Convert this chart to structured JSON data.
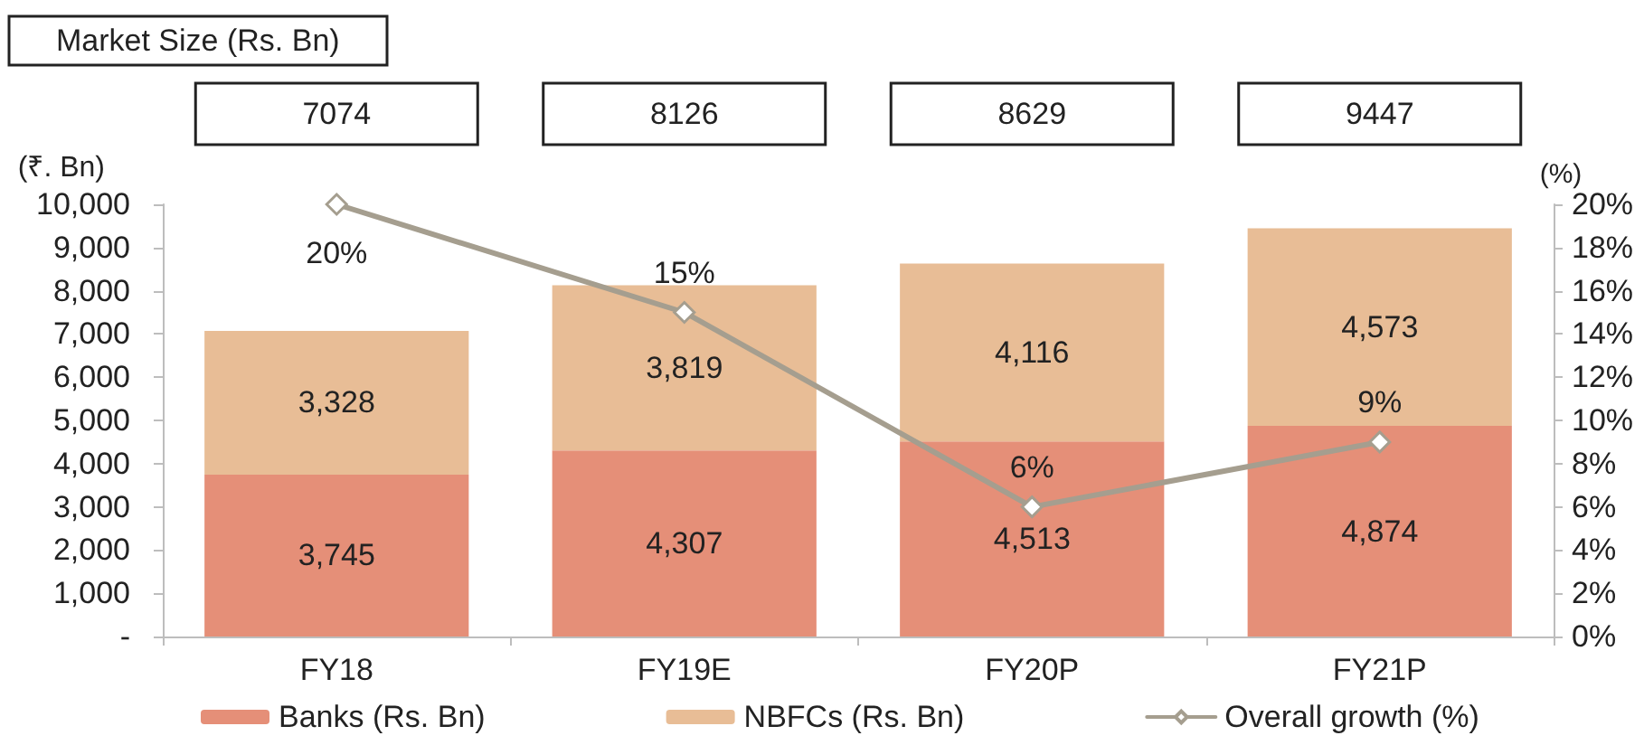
{
  "chart_data": {
    "type": "bar",
    "title": "Market Size (Rs. Bn)",
    "ylabel": "(₹. Bn)",
    "y2label": "(%)",
    "categories": [
      "FY18",
      "FY19E",
      "FY20P",
      "FY21P"
    ],
    "stacked": true,
    "series": [
      {
        "name": "Banks (Rs. Bn)",
        "color": "#e58f78",
        "values": [
          3745,
          4307,
          4513,
          4874
        ],
        "value_labels": [
          "3,745",
          "4,307",
          "4,513",
          "4,874"
        ]
      },
      {
        "name": "NBFCs (Rs. Bn)",
        "color": "#e8bd96",
        "values": [
          3328,
          3819,
          4116,
          4573
        ],
        "value_labels": [
          "3,328",
          "3,819",
          "4,116",
          "4,573"
        ]
      },
      {
        "name": "Overall growth (%)",
        "type": "line",
        "axis": "y2",
        "color": "#a59e8f",
        "values": [
          20,
          15,
          6,
          9
        ],
        "value_labels": [
          "20%",
          "15%",
          "6%",
          "9%"
        ]
      }
    ],
    "annotations": [
      "7074",
      "8126",
      "8629",
      "9447"
    ],
    "ylim": [
      0,
      10000
    ],
    "yticks": [
      {
        "value": 0,
        "label": "-"
      },
      {
        "value": 1000,
        "label": "1,000"
      },
      {
        "value": 2000,
        "label": "2,000"
      },
      {
        "value": 3000,
        "label": "3,000"
      },
      {
        "value": 4000,
        "label": "4,000"
      },
      {
        "value": 5000,
        "label": "5,000"
      },
      {
        "value": 6000,
        "label": "6,000"
      },
      {
        "value": 7000,
        "label": "7,000"
      },
      {
        "value": 8000,
        "label": "8,000"
      },
      {
        "value": 9000,
        "label": "9,000"
      },
      {
        "value": 10000,
        "label": "10,000"
      }
    ],
    "y2lim": [
      0,
      20
    ],
    "y2ticks": [
      {
        "value": 0,
        "label": "0%"
      },
      {
        "value": 2,
        "label": "2%"
      },
      {
        "value": 4,
        "label": "4%"
      },
      {
        "value": 6,
        "label": "6%"
      },
      {
        "value": 8,
        "label": "8%"
      },
      {
        "value": 10,
        "label": "10%"
      },
      {
        "value": 12,
        "label": "12%"
      },
      {
        "value": 14,
        "label": "14%"
      },
      {
        "value": 16,
        "label": "16%"
      },
      {
        "value": 18,
        "label": "18%"
      },
      {
        "value": 20,
        "label": "20%"
      }
    ],
    "grid": false,
    "legend": "bottom",
    "marker": "diamond",
    "line_style": "solid"
  }
}
